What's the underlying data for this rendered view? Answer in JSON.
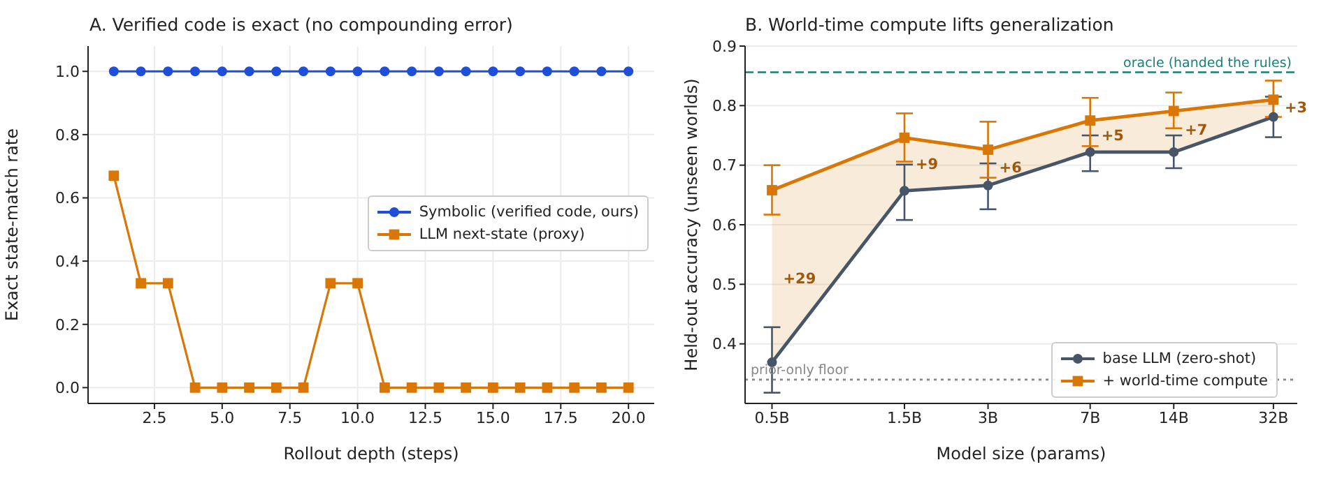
{
  "chart_data": [
    {
      "type": "line",
      "title": "A. Verified code is exact (no compounding error)",
      "xlabel": "Rollout depth (steps)",
      "ylabel": "Exact state-match rate",
      "x": [
        1,
        2,
        3,
        4,
        5,
        6,
        7,
        8,
        9,
        10,
        11,
        12,
        13,
        14,
        15,
        16,
        17,
        18,
        19,
        20
      ],
      "series": [
        {
          "name": "Symbolic (verified code, ours)",
          "color": "#1f4fd8",
          "marker": "circle",
          "values": [
            1,
            1,
            1,
            1,
            1,
            1,
            1,
            1,
            1,
            1,
            1,
            1,
            1,
            1,
            1,
            1,
            1,
            1,
            1,
            1
          ]
        },
        {
          "name": "LLM next-state (proxy)",
          "color": "#d97706",
          "marker": "square",
          "values": [
            0.67,
            0.33,
            0.33,
            0,
            0,
            0,
            0,
            0,
            0.33,
            0.33,
            0,
            0,
            0,
            0,
            0,
            0,
            0,
            0,
            0,
            0
          ]
        }
      ],
      "xlim": [
        0.05,
        20.95
      ],
      "xticks": [
        {
          "value": 2.5,
          "label": "2.5"
        },
        {
          "value": 5,
          "label": "5.0"
        },
        {
          "value": 7.5,
          "label": "7.5"
        },
        {
          "value": 10,
          "label": "10.0"
        },
        {
          "value": 12.5,
          "label": "12.5"
        },
        {
          "value": 15,
          "label": "15.0"
        },
        {
          "value": 17.5,
          "label": "17.5"
        },
        {
          "value": 20,
          "label": "20.0"
        }
      ],
      "ylim": [
        -0.05,
        1.08
      ],
      "yticks": [
        {
          "value": 0,
          "label": "0.0"
        },
        {
          "value": 0.2,
          "label": "0.2"
        },
        {
          "value": 0.4,
          "label": "0.4"
        },
        {
          "value": 0.6,
          "label": "0.6"
        },
        {
          "value": 0.8,
          "label": "0.8"
        },
        {
          "value": 1,
          "label": "1.0"
        }
      ],
      "grid": true,
      "legend": "center right"
    },
    {
      "type": "line",
      "title": "B. World-time compute lifts generalization",
      "xlabel": "Model size (params)",
      "ylabel": "Held-out accuracy (unseen worlds)",
      "x": [
        0.5,
        1.5,
        3,
        7,
        14,
        32
      ],
      "log": "x",
      "series": [
        {
          "name": "base LLM (zero-shot)",
          "color": "#475569",
          "marker": "circle",
          "values": [
            0.369,
            0.657,
            0.666,
            0.722,
            0.722,
            0.781
          ],
          "errors": [
            [
              0.318,
              0.428
            ],
            [
              0.608,
              0.701
            ],
            [
              0.626,
              0.703
            ],
            [
              0.69,
              0.75
            ],
            [
              0.695,
              0.75
            ],
            [
              0.747,
              0.815
            ]
          ]
        },
        {
          "name": "+ world-time compute",
          "color": "#d97706",
          "marker": "square",
          "values": [
            0.658,
            0.746,
            0.726,
            0.775,
            0.791,
            0.81
          ],
          "errors": [
            [
              0.617,
              0.7
            ],
            [
              0.706,
              0.787
            ],
            [
              0.679,
              0.773
            ],
            [
              0.732,
              0.813
            ],
            [
              0.762,
              0.822
            ],
            [
              0.781,
              0.842
            ]
          ],
          "lower": [
            0.369,
            0.657,
            0.666,
            0.722,
            0.722,
            0.781
          ],
          "upper": [
            0.658,
            0.746,
            0.726,
            0.775,
            0.791,
            0.81
          ]
        }
      ],
      "xlim": [
        0.4,
        39
      ],
      "xticks": [
        {
          "value": 0.5,
          "label": "0.5B"
        },
        {
          "value": 1.5,
          "label": "1.5B"
        },
        {
          "value": 3,
          "label": "3B"
        },
        {
          "value": 7,
          "label": "7B"
        },
        {
          "value": 14,
          "label": "14B"
        },
        {
          "value": 32,
          "label": "32B"
        }
      ],
      "ylim": [
        0.3,
        0.9
      ],
      "yticks": [
        0.4,
        0.5,
        0.6,
        0.7,
        0.8,
        0.9
      ],
      "ref_lines": [
        {
          "axis": "y",
          "value": 0.856,
          "label": "oracle (handed the rules)",
          "color": "#1a7f74",
          "line_style": "dashed"
        },
        {
          "axis": "y",
          "value": 0.34,
          "label": "prior-only floor",
          "color": "#888888",
          "line_style": "dotted"
        }
      ],
      "annotations": [
        {
          "text": "+29",
          "x": 0.5,
          "y": 0.51
        },
        {
          "text": "+9",
          "x": 1.5,
          "y": 0.702
        },
        {
          "text": "+6",
          "x": 3,
          "y": 0.697
        },
        {
          "text": "+5",
          "x": 7,
          "y": 0.75
        },
        {
          "text": "+7",
          "x": 14,
          "y": 0.76
        },
        {
          "text": "+3",
          "x": 32,
          "y": 0.797
        }
      ],
      "grid": "y",
      "legend": "bottom right"
    }
  ]
}
